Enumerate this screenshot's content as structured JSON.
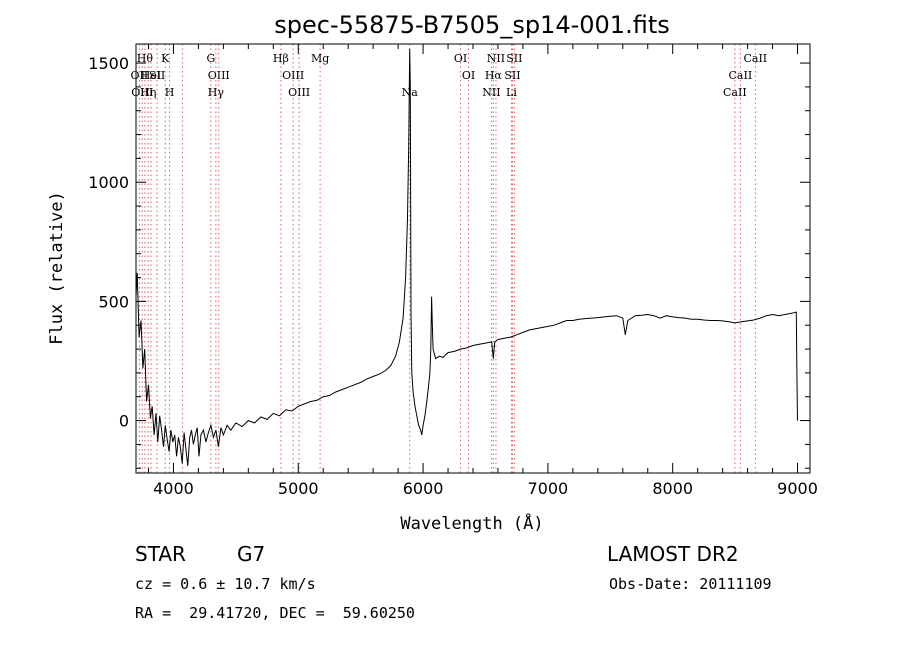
{
  "chart_data": {
    "type": "line",
    "title": "spec-55875-B7505_sp14-001.fits",
    "xlabel": "Wavelength (Å)",
    "ylabel": "Flux (relative)",
    "xlim": [
      3700,
      9100
    ],
    "ylim": [
      -220,
      1580
    ],
    "x_ticks": [
      4000,
      5000,
      6000,
      7000,
      8000,
      9000
    ],
    "y_ticks": [
      0,
      500,
      1000,
      1500
    ],
    "grid": false,
    "spectrum": [
      [
        3700,
        520
      ],
      [
        3710,
        620
      ],
      [
        3725,
        350
      ],
      [
        3740,
        420
      ],
      [
        3755,
        220
      ],
      [
        3770,
        300
      ],
      [
        3785,
        80
      ],
      [
        3800,
        150
      ],
      [
        3815,
        10
      ],
      [
        3830,
        60
      ],
      [
        3845,
        -60
      ],
      [
        3860,
        30
      ],
      [
        3875,
        -90
      ],
      [
        3890,
        20
      ],
      [
        3905,
        -40
      ],
      [
        3920,
        -110
      ],
      [
        3935,
        -20
      ],
      [
        3950,
        -80
      ],
      [
        3965,
        -130
      ],
      [
        3980,
        -40
      ],
      [
        3995,
        -90
      ],
      [
        4010,
        -60
      ],
      [
        4025,
        -150
      ],
      [
        4040,
        -70
      ],
      [
        4055,
        -110
      ],
      [
        4070,
        -180
      ],
      [
        4085,
        -50
      ],
      [
        4100,
        -120
      ],
      [
        4115,
        -190
      ],
      [
        4130,
        -70
      ],
      [
        4145,
        -40
      ],
      [
        4160,
        -100
      ],
      [
        4175,
        -60
      ],
      [
        4190,
        -30
      ],
      [
        4205,
        -150
      ],
      [
        4220,
        -60
      ],
      [
        4240,
        -40
      ],
      [
        4260,
        -90
      ],
      [
        4280,
        -50
      ],
      [
        4300,
        -20
      ],
      [
        4320,
        -70
      ],
      [
        4340,
        -40
      ],
      [
        4360,
        -110
      ],
      [
        4380,
        -30
      ],
      [
        4400,
        -60
      ],
      [
        4430,
        -20
      ],
      [
        4460,
        -40
      ],
      [
        4500,
        -10
      ],
      [
        4550,
        -25
      ],
      [
        4600,
        0
      ],
      [
        4650,
        -10
      ],
      [
        4700,
        15
      ],
      [
        4750,
        5
      ],
      [
        4800,
        30
      ],
      [
        4850,
        20
      ],
      [
        4900,
        45
      ],
      [
        4950,
        40
      ],
      [
        5000,
        60
      ],
      [
        5050,
        70
      ],
      [
        5100,
        80
      ],
      [
        5150,
        85
      ],
      [
        5200,
        100
      ],
      [
        5250,
        105
      ],
      [
        5300,
        120
      ],
      [
        5350,
        130
      ],
      [
        5400,
        140
      ],
      [
        5450,
        150
      ],
      [
        5500,
        160
      ],
      [
        5550,
        175
      ],
      [
        5600,
        185
      ],
      [
        5650,
        195
      ],
      [
        5700,
        210
      ],
      [
        5740,
        230
      ],
      [
        5780,
        270
      ],
      [
        5810,
        330
      ],
      [
        5840,
        430
      ],
      [
        5860,
        600
      ],
      [
        5875,
        850
      ],
      [
        5885,
        1150
      ],
      [
        5893,
        1560
      ],
      [
        5898,
        1400
      ],
      [
        5903,
        450
      ],
      [
        5910,
        200
      ],
      [
        5920,
        120
      ],
      [
        5935,
        60
      ],
      [
        5950,
        20
      ],
      [
        5965,
        -20
      ],
      [
        5980,
        -40
      ],
      [
        5990,
        -60
      ],
      [
        6000,
        -20
      ],
      [
        6015,
        20
      ],
      [
        6030,
        80
      ],
      [
        6045,
        150
      ],
      [
        6055,
        200
      ],
      [
        6062,
        300
      ],
      [
        6068,
        520
      ],
      [
        6073,
        420
      ],
      [
        6080,
        300
      ],
      [
        6100,
        260
      ],
      [
        6130,
        270
      ],
      [
        6160,
        265
      ],
      [
        6200,
        285
      ],
      [
        6250,
        290
      ],
      [
        6300,
        300
      ],
      [
        6350,
        305
      ],
      [
        6400,
        315
      ],
      [
        6450,
        320
      ],
      [
        6500,
        325
      ],
      [
        6550,
        330
      ],
      [
        6563,
        260
      ],
      [
        6575,
        330
      ],
      [
        6600,
        340
      ],
      [
        6650,
        345
      ],
      [
        6700,
        350
      ],
      [
        6750,
        360
      ],
      [
        6800,
        370
      ],
      [
        6850,
        380
      ],
      [
        6900,
        385
      ],
      [
        6950,
        390
      ],
      [
        7000,
        395
      ],
      [
        7050,
        400
      ],
      [
        7100,
        410
      ],
      [
        7150,
        420
      ],
      [
        7200,
        420
      ],
      [
        7250,
        425
      ],
      [
        7300,
        428
      ],
      [
        7350,
        430
      ],
      [
        7400,
        432
      ],
      [
        7450,
        435
      ],
      [
        7500,
        438
      ],
      [
        7550,
        440
      ],
      [
        7600,
        430
      ],
      [
        7620,
        360
      ],
      [
        7640,
        420
      ],
      [
        7700,
        440
      ],
      [
        7750,
        442
      ],
      [
        7800,
        445
      ],
      [
        7850,
        440
      ],
      [
        7900,
        430
      ],
      [
        7950,
        440
      ],
      [
        8000,
        435
      ],
      [
        8050,
        432
      ],
      [
        8100,
        430
      ],
      [
        8150,
        425
      ],
      [
        8200,
        425
      ],
      [
        8250,
        422
      ],
      [
        8300,
        420
      ],
      [
        8350,
        420
      ],
      [
        8400,
        418
      ],
      [
        8450,
        415
      ],
      [
        8500,
        410
      ],
      [
        8550,
        415
      ],
      [
        8600,
        418
      ],
      [
        8650,
        422
      ],
      [
        8700,
        430
      ],
      [
        8750,
        440
      ],
      [
        8800,
        445
      ],
      [
        8850,
        440
      ],
      [
        8900,
        445
      ],
      [
        8950,
        450
      ],
      [
        8990,
        455
      ],
      [
        8995,
        200
      ],
      [
        9000,
        0
      ]
    ],
    "lines": [
      {
        "wavelength": 3727,
        "label": "OII",
        "row": 1
      },
      {
        "wavelength": 3750,
        "label": "OIII",
        "row": 2
      },
      {
        "wavelength": 3771,
        "label": "Hθ",
        "row": 0
      },
      {
        "wavelength": 3798,
        "label": "Hη",
        "row": 2
      },
      {
        "wavelength": 3820,
        "label": "HeI",
        "row": 1
      },
      {
        "wavelength": 3869,
        "label": "SII",
        "row": 1
      },
      {
        "wavelength": 3934,
        "label": "K",
        "row": 0
      },
      {
        "wavelength": 3969,
        "label": "H",
        "row": 2
      },
      {
        "wavelength": 4072,
        "label": "",
        "row": 0
      },
      {
        "wavelength": 4300,
        "label": "G",
        "row": 0
      },
      {
        "wavelength": 4340,
        "label": "Hγ",
        "row": 2
      },
      {
        "wavelength": 4363,
        "label": "OIII",
        "row": 1
      },
      {
        "wavelength": 4861,
        "label": "Hβ",
        "row": 0
      },
      {
        "wavelength": 4959,
        "label": "OIII",
        "row": 1
      },
      {
        "wavelength": 5007,
        "label": "OIII",
        "row": 2
      },
      {
        "wavelength": 5175,
        "label": "Mg",
        "row": 0
      },
      {
        "wavelength": 5893,
        "label": "Na",
        "row": 2
      },
      {
        "wavelength": 6300,
        "label": "OI",
        "row": 0
      },
      {
        "wavelength": 6364,
        "label": "OI",
        "row": 1
      },
      {
        "wavelength": 6548,
        "label": "NII",
        "row": 2
      },
      {
        "wavelength": 6563,
        "label": "Hα",
        "row": 1
      },
      {
        "wavelength": 6584,
        "label": "NII",
        "row": 0
      },
      {
        "wavelength": 6708,
        "label": "Li",
        "row": 2
      },
      {
        "wavelength": 6716,
        "label": "SII",
        "row": 1
      },
      {
        "wavelength": 6731,
        "label": "SII",
        "row": 0
      },
      {
        "wavelength": 8498,
        "label": "CaII",
        "row": 2
      },
      {
        "wavelength": 8542,
        "label": "CaII",
        "row": 1
      },
      {
        "wavelength": 8662,
        "label": "CaII",
        "row": 0
      }
    ],
    "line_color": "#e06060"
  },
  "info": {
    "class": "STAR",
    "subclass": "G7",
    "survey": "LAMOST DR2",
    "cz": "cz = 0.6 ± 10.7 km/s",
    "obs_date": "Obs-Date: 20111109",
    "coords": "RA =  29.41720, DEC =  59.60250"
  }
}
